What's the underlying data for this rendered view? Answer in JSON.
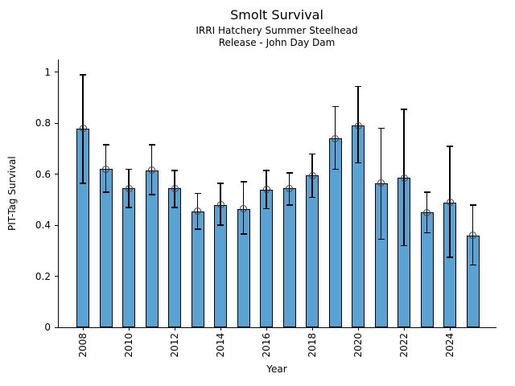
{
  "chart_data": {
    "type": "bar",
    "title": "Smolt Survival",
    "subtitle_line1": "IRRI Hatchery Summer Steelhead",
    "subtitle_line2": "Release - John Day Dam",
    "xlabel": "Year",
    "ylabel": "PIT-Tag Survival",
    "categories": [
      "2008",
      "2009",
      "2010",
      "2011",
      "2012",
      "2013",
      "2014",
      "2015",
      "2016",
      "2017",
      "2018",
      "2019",
      "2020",
      "2021",
      "2022",
      "2023",
      "2024",
      "2025"
    ],
    "values": [
      0.78,
      0.62,
      0.545,
      0.615,
      0.545,
      0.455,
      0.48,
      0.465,
      0.54,
      0.545,
      0.595,
      0.74,
      0.79,
      0.565,
      0.585,
      0.45,
      0.49,
      0.36
    ],
    "error_low": [
      0.565,
      0.53,
      0.47,
      0.52,
      0.47,
      0.385,
      0.4,
      0.365,
      0.465,
      0.48,
      0.51,
      0.62,
      0.645,
      0.345,
      0.32,
      0.37,
      0.275,
      0.245
    ],
    "error_high": [
      0.99,
      0.715,
      0.62,
      0.715,
      0.615,
      0.525,
      0.565,
      0.57,
      0.615,
      0.605,
      0.68,
      0.865,
      0.945,
      0.78,
      0.855,
      0.53,
      0.71,
      0.48
    ],
    "ylim": [
      0,
      1.05
    ],
    "yticks": [
      0,
      0.2,
      0.4,
      0.6,
      0.8,
      1
    ],
    "ytick_labels": [
      "0",
      "0.2",
      "0.4",
      "0.6",
      "0.8",
      "1"
    ],
    "xtick_labels": [
      "2008",
      "2010",
      "2012",
      "2014",
      "2016",
      "2018",
      "2020",
      "2022",
      "2024"
    ],
    "grid": false,
    "legend": "none",
    "marker": "open-circle-at-bar-top",
    "error_bars": "asymmetric-with-caps",
    "colors": {
      "bar_fill": "#58a3d3",
      "bar_edge": "#000000",
      "error_bar": "#000000",
      "marker_edge": "#404040",
      "axis": "#000000",
      "text": "#000000",
      "background": "#ffffff"
    }
  }
}
